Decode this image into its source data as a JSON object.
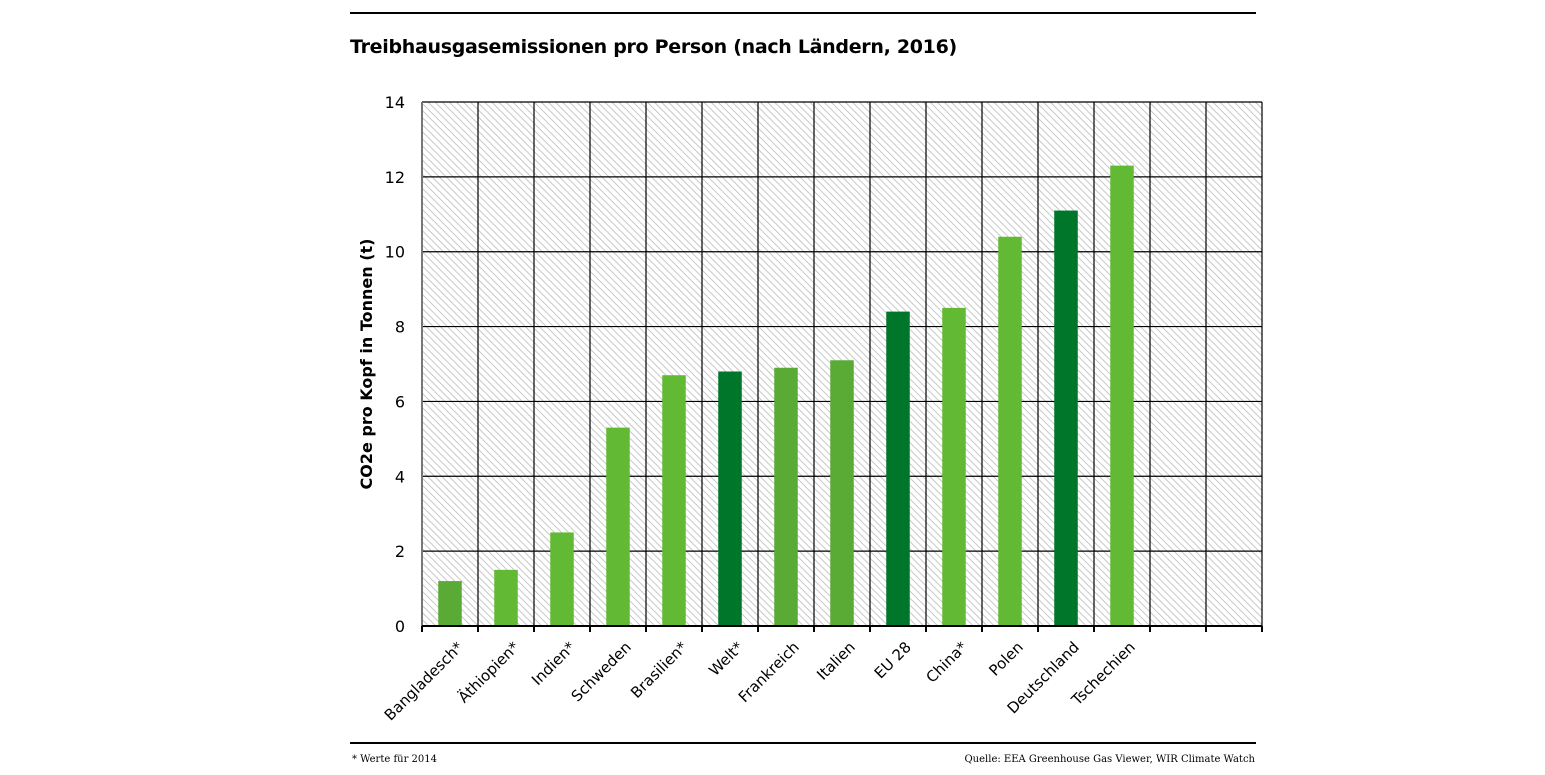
{
  "header": {
    "title": "Treibhausgasemissionen pro Person (nach Ländern, 2016)"
  },
  "footer": {
    "footnote": "* Werte für 2014",
    "source": "Quelle: EEA Greenhouse Gas Viewer, WIR Climate Watch"
  },
  "colors": {
    "light_green": "#62b933",
    "medium_green": "#5aaa36",
    "dark_green": "#00762b",
    "grid": "#000000",
    "hatch": "#cfcfcf"
  },
  "chart_data": {
    "type": "bar",
    "title": "Treibhausgasemissionen pro Person (nach Ländern, 2016)",
    "xlabel": "",
    "ylabel": "CO2e pro Kopf in Tonnen (t)",
    "ylim": [
      0,
      14
    ],
    "yticks": [
      0,
      2,
      4,
      6,
      8,
      10,
      12,
      14
    ],
    "grid": true,
    "legend": "none",
    "slots": 15,
    "categories": [
      "Bangladesch*",
      "Äthiopien*",
      "Indien*",
      "Schweden",
      "Brasilien*",
      "Welt*",
      "Frankreich",
      "Italien",
      "EU 28",
      "China*",
      "Polen",
      "Deutschland",
      "Tschechien"
    ],
    "values": [
      1.2,
      1.5,
      2.5,
      5.3,
      6.7,
      6.8,
      6.9,
      7.1,
      8.4,
      8.5,
      10.4,
      11.1,
      12.3
    ],
    "bar_colors": [
      "medium_green",
      "light_green",
      "light_green",
      "light_green",
      "light_green",
      "dark_green",
      "medium_green",
      "medium_green",
      "dark_green",
      "light_green",
      "light_green",
      "dark_green",
      "light_green"
    ]
  }
}
